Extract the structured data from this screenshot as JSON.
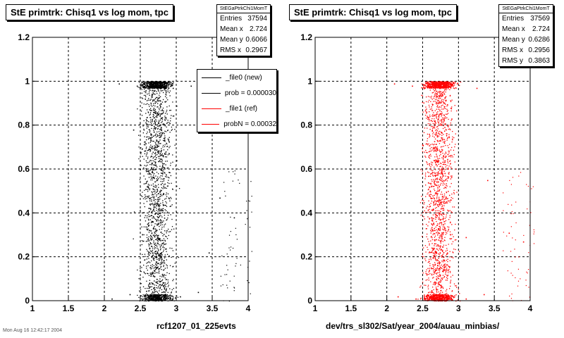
{
  "panels": [
    {
      "title": "StE primtrk: Chisq1 vs log mom, tpc",
      "stats": {
        "name": "StEGaPtrkChi1MomT",
        "rows": [
          {
            "label": "Entries",
            "value": "37594"
          },
          {
            "label": "Mean x",
            "value": "2.724"
          },
          {
            "label": "Mean y",
            "value": "0.6066"
          },
          {
            "label": "RMS x",
            "value": "0.2967"
          }
        ]
      },
      "legend": [
        {
          "label": "_file0 (new)",
          "color": "#000000"
        },
        {
          "label": "prob = 0.000030",
          "color": "#000000"
        },
        {
          "label": "_file1 (ref)",
          "color": "#ff0000"
        },
        {
          "label": "probN = 0.00032",
          "color": "#ff0000"
        }
      ],
      "caption": "rcf1207_01_225evts"
    },
    {
      "title": "StE primtrk: Chisq1 vs log mom, tpc",
      "stats": {
        "name": "StEGaPtrkChi1MomT",
        "rows": [
          {
            "label": "Entries",
            "value": "37569"
          },
          {
            "label": "Mean x",
            "value": "2.724"
          },
          {
            "label": "Mean y",
            "value": "0.6286"
          },
          {
            "label": "RMS x",
            "value": "0.2956"
          },
          {
            "label": "RMS y",
            "value": "0.3863"
          }
        ]
      },
      "caption": "dev/trs_sl302/Sat/year_2004/auau_minbias/"
    }
  ],
  "footer_note": "Mon Aug 16 12:42:17 2004",
  "chart_data": [
    {
      "type": "scatter",
      "title": "StE primtrk: Chisq1 vs log mom, tpc",
      "xlabel": "rcf1207_01_225evts",
      "ylabel": "",
      "xlim": [
        1,
        4
      ],
      "ylim": [
        0,
        1.2
      ],
      "xticks": [
        "1",
        "1.5",
        "2",
        "2.5",
        "3",
        "3.5",
        "4"
      ],
      "yticks": [
        "0",
        "0.2",
        "0.4",
        "0.6",
        "0.8",
        "1",
        "1.2"
      ],
      "grid": true,
      "color": "#000000",
      "entries": 37594,
      "mean_x": 2.724,
      "mean_y": 0.6066,
      "rms_x": 0.2967,
      "x_range": [
        2.0,
        3.6
      ],
      "bands_y": [
        0.0,
        1.0
      ],
      "points": [
        [
          2.1,
          0.01
        ],
        [
          2.35,
          0.03
        ],
        [
          2.55,
          0.02
        ],
        [
          2.75,
          0.01
        ],
        [
          3.05,
          0.02
        ],
        [
          3.3,
          0.04
        ],
        [
          2.2,
          0.99
        ],
        [
          2.45,
          0.98
        ],
        [
          2.7,
          0.99
        ],
        [
          2.95,
          0.97
        ],
        [
          3.2,
          0.98
        ],
        [
          2.4,
          0.78
        ],
        [
          2.6,
          0.52
        ],
        [
          2.8,
          0.36
        ],
        [
          3.0,
          0.64
        ],
        [
          3.45,
          0.22
        ],
        [
          3.6,
          0.47
        ],
        [
          3.8,
          0.38
        ]
      ]
    },
    {
      "type": "scatter",
      "title": "StE primtrk: Chisq1 vs log mom, tpc",
      "xlabel": "dev/trs_sl302/Sat/year_2004/auau_minbias/",
      "ylabel": "",
      "xlim": [
        1,
        4
      ],
      "ylim": [
        0,
        1.2
      ],
      "xticks": [
        "1",
        "1.5",
        "2",
        "2.5",
        "3",
        "3.5",
        "4"
      ],
      "yticks": [
        "0",
        "0.2",
        "0.4",
        "0.6",
        "0.8",
        "1",
        "1.2"
      ],
      "grid": true,
      "color": "#ff0000",
      "entries": 37569,
      "mean_x": 2.724,
      "mean_y": 0.6286,
      "rms_x": 0.2956,
      "rms_y": 0.3863,
      "x_range": [
        2.0,
        3.6
      ],
      "bands_y": [
        0.0,
        1.0
      ],
      "points": [
        [
          2.15,
          0.02
        ],
        [
          2.4,
          0.01
        ],
        [
          2.6,
          0.03
        ],
        [
          2.85,
          0.02
        ],
        [
          3.1,
          0.01
        ],
        [
          3.35,
          0.03
        ],
        [
          2.1,
          0.99
        ],
        [
          2.35,
          0.98
        ],
        [
          2.65,
          0.99
        ],
        [
          2.9,
          0.98
        ],
        [
          3.25,
          0.97
        ],
        [
          2.5,
          0.71
        ],
        [
          2.7,
          0.44
        ],
        [
          2.9,
          0.83
        ],
        [
          3.1,
          0.29
        ],
        [
          3.4,
          0.55
        ],
        [
          3.7,
          0.31
        ],
        [
          3.9,
          0.27
        ]
      ]
    }
  ]
}
